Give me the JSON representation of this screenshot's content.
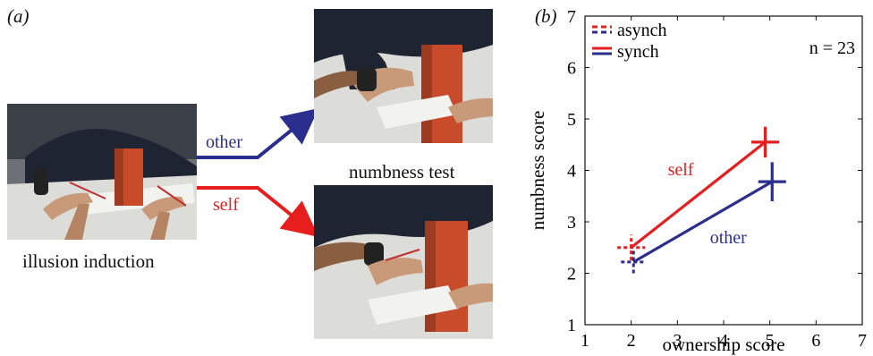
{
  "figure": {
    "panel_a": {
      "label": "(a)",
      "induction_caption": "illusion induction",
      "test_caption": "numbness test",
      "arrow_other_label": "other",
      "arrow_self_label": "self",
      "colors": {
        "other": "#2b2e8c",
        "self": "#e61e1e"
      }
    },
    "panel_b": {
      "label": "(b)"
    }
  },
  "chart_data": {
    "type": "scatter",
    "xlabel": "ownership score",
    "ylabel": "numbness score",
    "xlim": [
      1,
      7
    ],
    "ylim": [
      1,
      7
    ],
    "xticks": [
      1,
      2,
      3,
      4,
      5,
      6,
      7
    ],
    "yticks": [
      1,
      2,
      3,
      4,
      5,
      6,
      7
    ],
    "grid": false,
    "legend_position": "top-left",
    "legend": [
      {
        "label": "asynch",
        "style": "dashed"
      },
      {
        "label": "synch",
        "style": "solid"
      }
    ],
    "annotation": "n = 23",
    "series": [
      {
        "name": "self",
        "color": "#e61e1e",
        "asynch": {
          "x": 2.0,
          "y": 2.5,
          "x_err": 0.3,
          "y_err": 0.25
        },
        "synch": {
          "x": 4.9,
          "y": 4.55,
          "x_err": 0.3,
          "y_err": 0.3
        }
      },
      {
        "name": "other",
        "color": "#2b2e8c",
        "asynch": {
          "x": 2.05,
          "y": 2.22,
          "x_err": 0.27,
          "y_err": 0.22
        },
        "synch": {
          "x": 5.05,
          "y": 3.78,
          "x_err": 0.3,
          "y_err": 0.38
        }
      }
    ]
  }
}
